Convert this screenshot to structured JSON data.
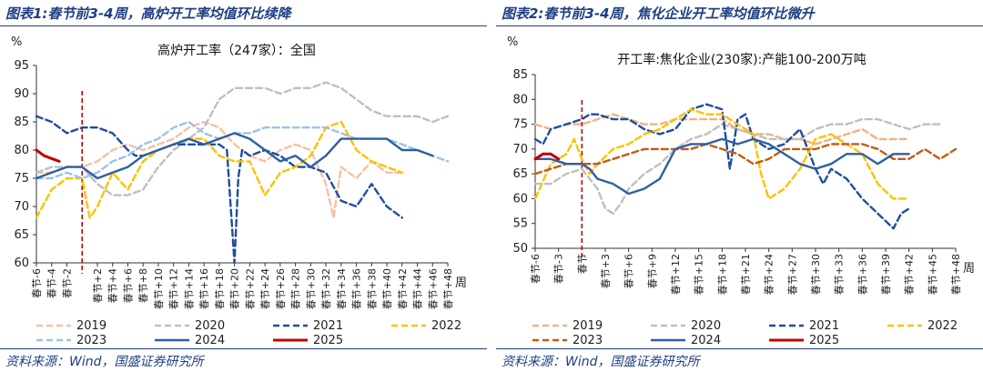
{
  "left": {
    "figure_title": "图表1:春节前3-4周，高炉开工率均值环比续降",
    "source": "资料来源：Wind，国盛证券研究所"
  },
  "right": {
    "figure_title": "图表2:春节前3-4周，焦化企业开工率均值环比微升",
    "source": "资料来源：Wind，国盛证券研究所"
  },
  "colors": {
    "2019": "#f7c1a2",
    "2020": "#bfbfbf",
    "2021": "#1f4e9c",
    "2022": "#ffc000",
    "2023": "#9dc3e6",
    "2024": "#2e5fa3",
    "2025": "#c00000",
    "title_blue": "#1f3f82",
    "marker": "#c00000",
    "right_2019": "#f4b183",
    "right_2023": "#c55a11"
  },
  "chart_data": [
    {
      "type": "line",
      "title": "高炉开工率（247家）：全国",
      "ylabel": "%",
      "xlabel": "周",
      "ylim": [
        60,
        95
      ],
      "yticks": [
        60,
        65,
        70,
        75,
        80,
        85,
        90,
        95
      ],
      "x_range": [
        -6,
        48
      ],
      "xticks": [
        -6,
        -4,
        -2,
        2,
        4,
        6,
        8,
        10,
        12,
        14,
        16,
        18,
        20,
        22,
        24,
        26,
        28,
        30,
        32,
        34,
        36,
        38,
        40,
        42,
        44,
        46,
        48
      ],
      "xtick_labels": [
        "春节-6",
        "春节-4",
        "春节-2",
        "春节+2",
        "春节+4",
        "春节+6",
        "春节+8",
        "春节+10",
        "春节+12",
        "春节+14",
        "春节+16",
        "春节+18",
        "春节+20",
        "春节+22",
        "春节+24",
        "春节+26",
        "春节+28",
        "春节+30",
        "春节+32",
        "春节+34",
        "春节+36",
        "春节+38",
        "春节+40",
        "春节+42",
        "春节+44",
        "春节+46",
        "春节+48"
      ],
      "spring_festival_x": 0,
      "legend": [
        "2019",
        "2020",
        "2021",
        "2022",
        "2023",
        "2024",
        "2025"
      ],
      "series": [
        {
          "name": "2019",
          "style": "dash",
          "x": [
            -6,
            -4,
            -2,
            0,
            2,
            4,
            6,
            8,
            10,
            12,
            14,
            16,
            18,
            20,
            22,
            24,
            26,
            28,
            30,
            32,
            33,
            34,
            36,
            38,
            40,
            42
          ],
          "values": [
            76,
            76,
            77,
            77,
            78,
            80,
            81,
            80,
            81,
            82,
            84,
            85,
            84,
            81,
            79,
            78,
            80,
            81,
            80,
            74,
            68,
            77,
            75,
            78,
            76,
            76
          ]
        },
        {
          "name": "2020",
          "style": "dash",
          "x": [
            -6,
            -4,
            -2,
            0,
            2,
            4,
            6,
            8,
            10,
            12,
            14,
            16,
            18,
            20,
            22,
            24,
            26,
            28,
            30,
            32,
            34,
            36,
            38,
            40,
            42,
            44,
            46,
            48
          ],
          "values": [
            76,
            77,
            77,
            77,
            74,
            72,
            72,
            73,
            77,
            80,
            82,
            84,
            89,
            91,
            91,
            91,
            90,
            91,
            91,
            92,
            91,
            89,
            87,
            86,
            86,
            86,
            85,
            86
          ]
        },
        {
          "name": "2021",
          "style": "dash",
          "x": [
            -6,
            -4,
            -2,
            0,
            2,
            4,
            6,
            7,
            8,
            10,
            12,
            14,
            16,
            18,
            19,
            20,
            20.5,
            21,
            22,
            24,
            26,
            28,
            30,
            32,
            34,
            36,
            38,
            40,
            42
          ],
          "values": [
            86,
            85,
            83,
            84,
            84,
            83,
            80,
            79,
            79,
            80,
            81,
            81,
            81,
            81,
            80,
            60,
            75,
            80,
            79,
            80,
            79,
            77,
            77,
            76,
            71,
            70,
            74,
            70,
            68
          ]
        },
        {
          "name": "2022",
          "style": "dash",
          "x": [
            -6,
            -4,
            -2,
            0,
            1,
            2,
            4,
            6,
            8,
            10,
            12,
            14,
            16,
            18,
            20,
            22,
            24,
            26,
            28,
            30,
            32,
            34,
            36,
            38,
            40,
            42
          ],
          "values": [
            68,
            73,
            75,
            75,
            68,
            70,
            76,
            73,
            78,
            80,
            81,
            82,
            82,
            79,
            78,
            78,
            72,
            76,
            77,
            79,
            84,
            85,
            80,
            78,
            77,
            76
          ]
        },
        {
          "name": "2023",
          "style": "dash",
          "x": [
            -6,
            -4,
            -2,
            0,
            2,
            4,
            6,
            8,
            10,
            12,
            14,
            16,
            18,
            20,
            22,
            24,
            26,
            28,
            30,
            32,
            34,
            36,
            38,
            40,
            42,
            44,
            46,
            48
          ],
          "values": [
            75,
            75,
            76,
            75,
            76,
            78,
            79,
            81,
            82,
            84,
            85,
            83,
            82,
            83,
            83,
            84,
            84,
            84,
            84,
            84,
            83,
            82,
            82,
            82,
            81,
            80,
            79,
            78
          ]
        },
        {
          "name": "2024",
          "style": "solid",
          "x": [
            -6,
            -4,
            -2,
            0,
            2,
            4,
            6,
            8,
            10,
            12,
            14,
            16,
            18,
            20,
            22,
            24,
            26,
            28,
            30,
            32,
            34,
            36,
            38,
            40,
            42,
            44,
            46
          ],
          "values": [
            75,
            76,
            77,
            77,
            75,
            76,
            77,
            79,
            80,
            81,
            82,
            81,
            82,
            83,
            82,
            80,
            78,
            79,
            77,
            79,
            82,
            82,
            82,
            82,
            80,
            80,
            79
          ]
        },
        {
          "name": "2025",
          "style": "solid",
          "x": [
            -6,
            -5,
            -4,
            -3
          ],
          "values": [
            80,
            79,
            78.5,
            78
          ]
        }
      ]
    },
    {
      "type": "line",
      "title": "开工率:焦化企业(230家):产能100-200万吨",
      "ylabel": "%",
      "xlabel": "周",
      "ylim": [
        50,
        85
      ],
      "yticks": [
        50,
        55,
        60,
        65,
        70,
        75,
        80,
        85
      ],
      "x_range": [
        -6,
        48
      ],
      "xticks": [
        -6,
        -3,
        3,
        6,
        9,
        12,
        15,
        18,
        21,
        24,
        27,
        30,
        33,
        36,
        39,
        42,
        45,
        48
      ],
      "xtick_labels": [
        "春节-6",
        "春节-3",
        "春节+3",
        "春节+6",
        "春节+9",
        "春节+12",
        "春节+15",
        "春节+18",
        "春节+21",
        "春节+24",
        "春节+27",
        "春节+30",
        "春节+33",
        "春节+36",
        "春节+39",
        "春节+42",
        "春节+45",
        "春节+48"
      ],
      "extra_tick_labels": [
        "春节"
      ],
      "spring_festival_x": 0,
      "legend": [
        "2019",
        "2020",
        "2021",
        "2022",
        "2023",
        "2024",
        "2025"
      ],
      "series": [
        {
          "name": "2019",
          "style": "dash",
          "x": [
            -6,
            -4,
            -2,
            0,
            2,
            4,
            6,
            8,
            10,
            12,
            14,
            16,
            18,
            20,
            22,
            24,
            26,
            28,
            30,
            32,
            34,
            36,
            38,
            40,
            42
          ],
          "values": [
            75,
            74,
            75,
            75,
            76,
            77,
            76,
            75,
            75,
            76,
            76,
            76,
            76,
            74,
            73,
            73,
            72,
            72,
            71,
            72,
            73,
            74,
            72,
            72,
            72
          ]
        },
        {
          "name": "2020",
          "style": "dash",
          "x": [
            -6,
            -4,
            -2,
            0,
            2,
            3,
            4,
            5,
            6,
            8,
            10,
            12,
            14,
            16,
            18,
            20,
            22,
            24,
            26,
            28,
            30,
            32,
            34,
            36,
            38,
            40,
            42,
            44,
            46
          ],
          "values": [
            63,
            63,
            65,
            66,
            62,
            58,
            57,
            59,
            62,
            65,
            67,
            70,
            72,
            73,
            75,
            74,
            73,
            72,
            72,
            72,
            74,
            75,
            75,
            76,
            76,
            75,
            74,
            75,
            75
          ]
        },
        {
          "name": "2021",
          "style": "dash",
          "x": [
            -6,
            -5,
            -4,
            -2,
            0,
            1,
            2,
            4,
            6,
            8,
            10,
            12,
            14,
            16,
            18,
            19,
            20,
            21,
            22,
            24,
            26,
            28,
            30,
            31,
            32,
            34,
            36,
            38,
            40,
            41,
            42
          ],
          "values": [
            72,
            71,
            74,
            75,
            76,
            77,
            77,
            76,
            76,
            74,
            73,
            74,
            78,
            79,
            78,
            66,
            76,
            77,
            72,
            70,
            71,
            74,
            66,
            63,
            66,
            64,
            60,
            57,
            54,
            57,
            58
          ]
        },
        {
          "name": "2022",
          "style": "dash",
          "x": [
            -6,
            -4,
            -2,
            -1,
            0,
            1,
            2,
            4,
            6,
            8,
            10,
            12,
            14,
            16,
            18,
            20,
            22,
            23,
            24,
            26,
            28,
            30,
            32,
            34,
            36,
            38,
            40,
            42
          ],
          "values": [
            60,
            67,
            69,
            72,
            68,
            65,
            67,
            70,
            71,
            73,
            74,
            76,
            78,
            77,
            77,
            75,
            73,
            65,
            60,
            62,
            66,
            72,
            73,
            71,
            69,
            63,
            60,
            60
          ]
        },
        {
          "name": "2023",
          "style": "dash",
          "x": [
            -6,
            -4,
            -2,
            0,
            2,
            4,
            6,
            8,
            10,
            12,
            14,
            16,
            18,
            20,
            22,
            24,
            26,
            28,
            30,
            32,
            34,
            36,
            38,
            40,
            42,
            44,
            46,
            48
          ],
          "values": [
            65,
            66,
            67,
            67,
            67,
            68,
            69,
            70,
            70,
            70,
            70,
            71,
            70,
            69,
            67,
            68,
            70,
            70,
            70,
            71,
            71,
            71,
            70,
            68,
            68,
            70,
            68,
            70
          ]
        },
        {
          "name": "2024",
          "style": "solid",
          "x": [
            -6,
            -4,
            -2,
            0,
            1,
            2,
            4,
            6,
            8,
            10,
            12,
            14,
            16,
            18,
            20,
            22,
            24,
            26,
            28,
            30,
            32,
            34,
            36,
            38,
            40,
            42
          ],
          "values": [
            68,
            68,
            67,
            67,
            66,
            64,
            63,
            61,
            62,
            64,
            70,
            71,
            71,
            72,
            71,
            72,
            71,
            69,
            67,
            66,
            67,
            69,
            69,
            67,
            69,
            69
          ]
        },
        {
          "name": "2025",
          "style": "solid",
          "x": [
            -6,
            -5,
            -4,
            -3
          ],
          "values": [
            68,
            69,
            69,
            68
          ]
        }
      ]
    }
  ]
}
